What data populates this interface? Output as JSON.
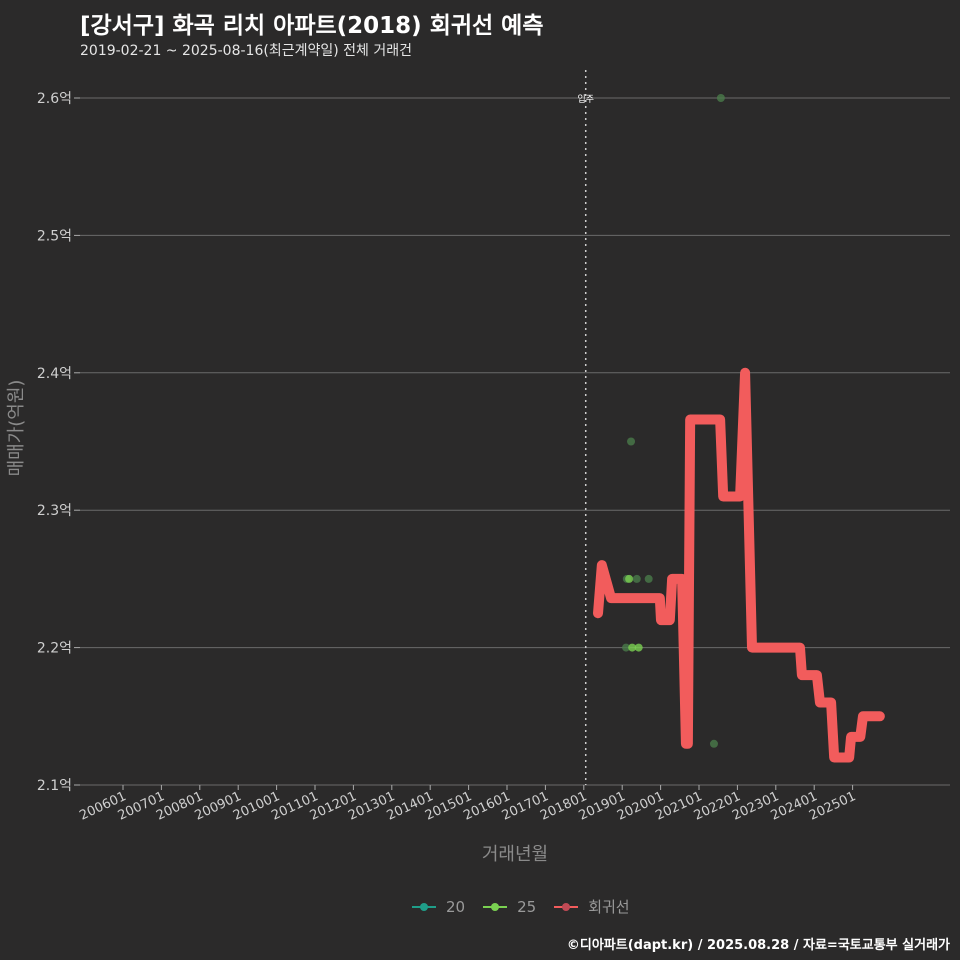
{
  "title": "[강서구] 화곡 리치 아파트(2018) 회귀선 예측",
  "subtitle": "2019-02-21 ~ 2025-08-16(최근계약일) 전체 거래건",
  "caption": "©디아파트(dapt.kr) / 2025.08.28 / 자료=국토교통부 실거래가",
  "chart_data": {
    "type": "line",
    "xlabel": "거래년월",
    "ylabel": "매매가(억원)",
    "ylim": [
      2.1,
      2.6
    ],
    "yticks": [
      {
        "v": 2.1,
        "label": "2.1억"
      },
      {
        "v": 2.2,
        "label": "2.2억"
      },
      {
        "v": 2.3,
        "label": "2.3억"
      },
      {
        "v": 2.4,
        "label": "2.4억"
      },
      {
        "v": 2.5,
        "label": "2.5억"
      },
      {
        "v": 2.6,
        "label": "2.6억"
      }
    ],
    "xticks": [
      "200601",
      "200701",
      "200801",
      "200901",
      "201001",
      "201101",
      "201201",
      "201301",
      "201401",
      "201501",
      "201601",
      "201701",
      "201801",
      "201901",
      "202001",
      "202101",
      "202201",
      "202301",
      "202401",
      "202501"
    ],
    "xlim_years": [
      2006,
      2026.2
    ],
    "vline": {
      "x": 2018.05,
      "label": "입주"
    },
    "legend": [
      {
        "name": "20",
        "color": "#1f9e89"
      },
      {
        "name": "25",
        "color": "#7ad151"
      },
      {
        "name": "회귀선",
        "color": "#f25c5c"
      }
    ],
    "regression": [
      [
        2018.37,
        2.225
      ],
      [
        2018.47,
        2.26
      ],
      [
        2018.71,
        2.236
      ],
      [
        2019.98,
        2.236
      ],
      [
        2020.01,
        2.22
      ],
      [
        2020.24,
        2.22
      ],
      [
        2020.3,
        2.25
      ],
      [
        2020.56,
        2.25
      ],
      [
        2020.66,
        2.13
      ],
      [
        2020.71,
        2.13
      ],
      [
        2020.77,
        2.366
      ],
      [
        2021.55,
        2.366
      ],
      [
        2021.63,
        2.31
      ],
      [
        2022.07,
        2.31
      ],
      [
        2022.2,
        2.4
      ],
      [
        2022.38,
        2.2
      ],
      [
        2023.63,
        2.2
      ],
      [
        2023.68,
        2.18
      ],
      [
        2024.07,
        2.18
      ],
      [
        2024.15,
        2.16
      ],
      [
        2024.44,
        2.16
      ],
      [
        2024.52,
        2.12
      ],
      [
        2024.91,
        2.12
      ],
      [
        2024.96,
        2.135
      ],
      [
        2025.2,
        2.135
      ],
      [
        2025.27,
        2.15
      ],
      [
        2025.71,
        2.15
      ]
    ],
    "points": [
      {
        "x": 2021.57,
        "y": 2.6,
        "area": "20"
      },
      {
        "x": 2019.23,
        "y": 2.35,
        "area": "20"
      },
      {
        "x": 2019.12,
        "y": 2.25,
        "area": "20"
      },
      {
        "x": 2019.18,
        "y": 2.25,
        "area": "25"
      },
      {
        "x": 2019.38,
        "y": 2.25,
        "area": "20"
      },
      {
        "x": 2019.69,
        "y": 2.25,
        "area": "20"
      },
      {
        "x": 2019.1,
        "y": 2.2,
        "area": "20"
      },
      {
        "x": 2019.26,
        "y": 2.2,
        "area": "25"
      },
      {
        "x": 2019.43,
        "y": 2.2,
        "area": "25"
      },
      {
        "x": 2021.39,
        "y": 2.13,
        "area": "20"
      }
    ]
  }
}
